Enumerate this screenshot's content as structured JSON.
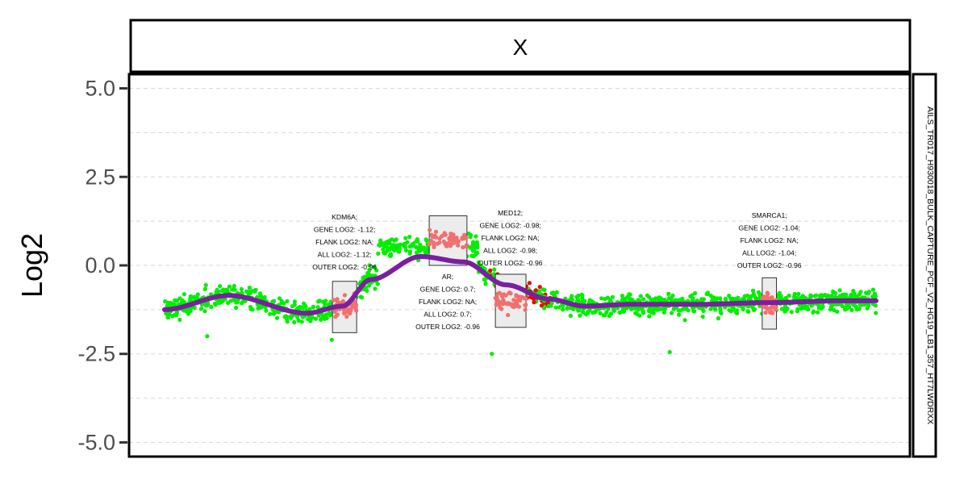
{
  "chart_data": {
    "type": "scatter",
    "facet_title": "X",
    "side_label": "AILS_TR017_H930018_BULK_CAPTURE_PCF_V2_HG19_LB1_357_HT7LWDRXX",
    "ylabel": "Log2",
    "xlabel": "",
    "ylim": [
      -5.4,
      5.4
    ],
    "xlim": [
      0,
      1
    ],
    "yticks": [
      5.0,
      2.5,
      0.0,
      -2.5,
      -5.0
    ],
    "ytick_labels": [
      "5.0",
      "2.5",
      "0.0",
      "-2.5",
      "-5.0"
    ],
    "grid": true,
    "colors": {
      "background_points": "#00ee00",
      "gene_points": "#f07070",
      "gained_points": "#ee0000",
      "smooth_line": "#7a1fa2",
      "gene_box_fill": "#ececec",
      "gene_box_stroke": "#333333",
      "grid": "#d9d9d9"
    },
    "smooth_line": {
      "x": [
        0.0,
        0.09,
        0.2,
        0.25,
        0.29,
        0.36,
        0.42,
        0.48,
        0.54,
        0.59,
        0.66,
        0.75,
        0.85,
        0.95,
        1.0
      ],
      "y": [
        -1.25,
        -0.85,
        -1.35,
        -1.15,
        -0.4,
        0.25,
        0.1,
        -0.55,
        -0.95,
        -1.15,
        -1.1,
        -1.1,
        -1.05,
        -1.0,
        -1.0
      ]
    },
    "genes": [
      {
        "name": "KDM6A",
        "x_range": [
          0.236,
          0.27
        ],
        "y_range": [
          -1.9,
          -0.45
        ],
        "lines": [
          "KDM6A;",
          "GENE LOG2: -1.12;",
          "FLANK LOG2: NA;",
          "ALL LOG2: -1.12;",
          "OUTER LOG2: -0.96"
        ]
      },
      {
        "name": "AR",
        "x_range": [
          0.372,
          0.425
        ],
        "y_range": [
          0.0,
          1.4
        ],
        "lines": [
          "AR;",
          "GENE LOG2: 0.7;",
          "FLANK LOG2: NA;",
          "ALL LOG2: 0.7;",
          "OUTER LOG2: -0.96"
        ]
      },
      {
        "name": "MED12",
        "x_range": [
          0.465,
          0.508
        ],
        "y_range": [
          -1.75,
          -0.25
        ],
        "lines": [
          "MED12;",
          "GENE LOG2: -0.98;",
          "FLANK LOG2: NA;",
          "ALL LOG2: -0.98;",
          "OUTER LOG2: -0.96"
        ]
      },
      {
        "name": "SMARCA1",
        "x_range": [
          0.84,
          0.86
        ],
        "y_range": [
          -1.8,
          -0.35
        ],
        "lines": [
          "SMARCA1;",
          "GENE LOG2: -1.04;",
          "FLANK LOG2: NA;",
          "ALL LOG2: -1.04;",
          "OUTER LOG2: -0.96"
        ]
      }
    ]
  }
}
